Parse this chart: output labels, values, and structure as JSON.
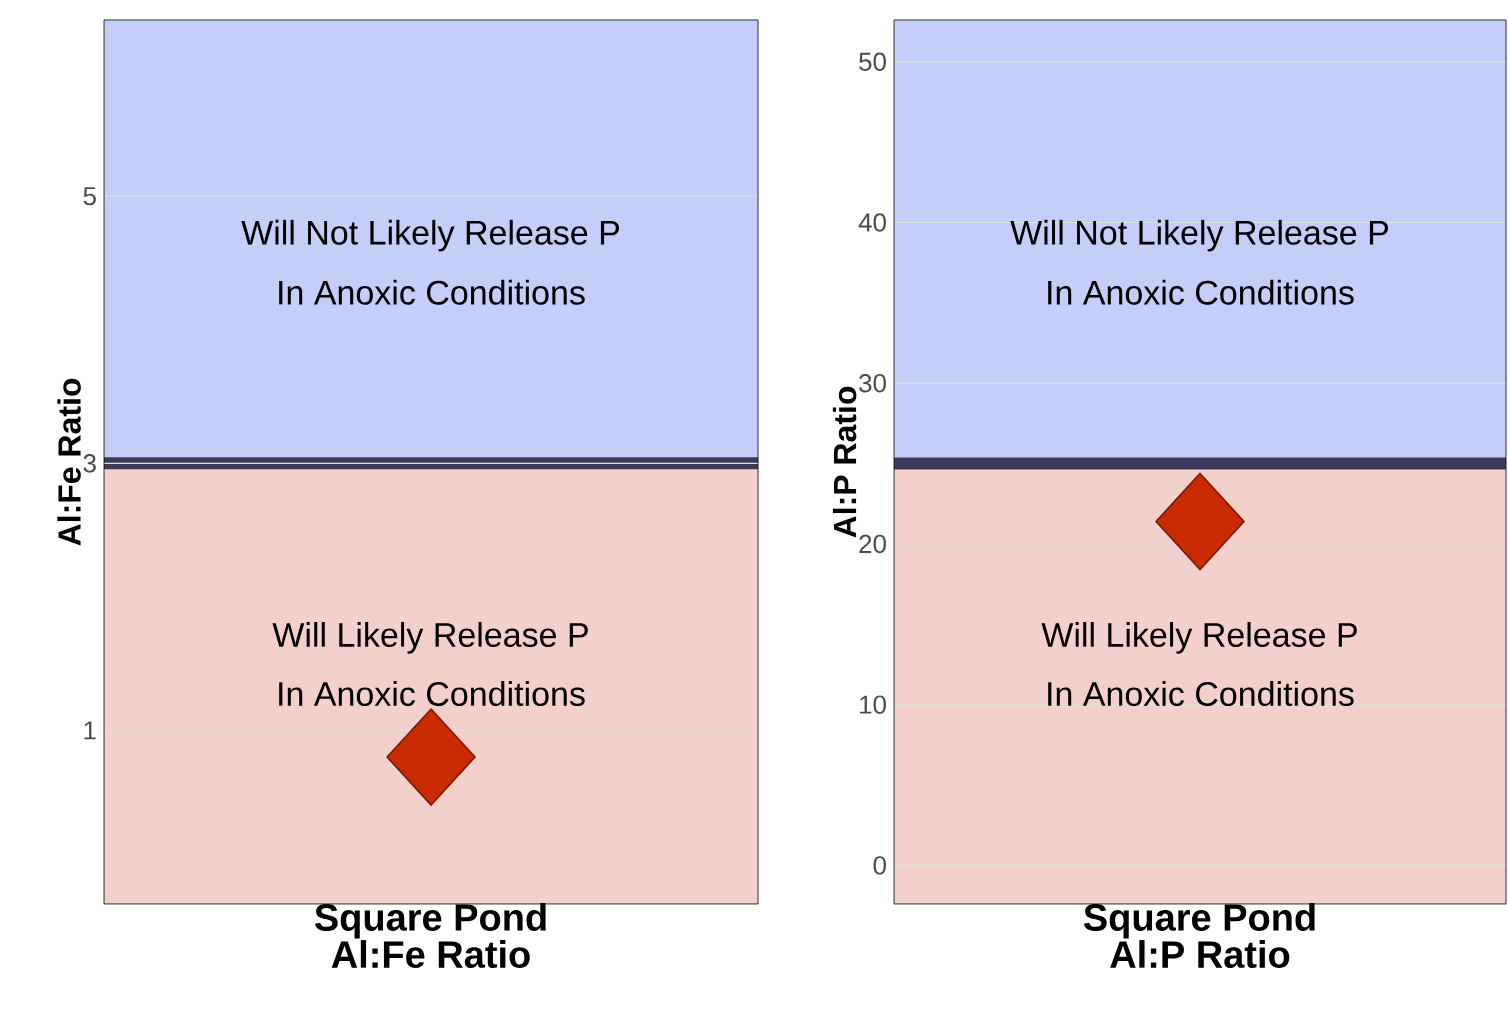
{
  "chart_data": [
    {
      "type": "scatter",
      "xlabel": "Al:Fe Ratio",
      "ylabel": "Al:Fe Ratio",
      "categories": [
        "Square Pond"
      ],
      "values": [
        0.8
      ],
      "color": "#c92a00",
      "marker": "diamond",
      "ylim": [
        -0.3,
        6.32
      ],
      "yticks": [
        1,
        3,
        5
      ],
      "grid": "y",
      "bands": [
        {
          "axis": "y",
          "from": -0.3,
          "to": 3,
          "color": "#f4d0cc"
        },
        {
          "axis": "y",
          "from": 3,
          "to": 6.32,
          "color": "#c5cdf9"
        }
      ],
      "ref_lines": [
        {
          "axis": "y",
          "value": 3,
          "color": "#3d3a5c"
        }
      ],
      "annotations": [
        "Will Not Likely Release P",
        "In Anoxic Conditions",
        "Will Likely Release P",
        "In Anoxic Conditions"
      ]
    },
    {
      "type": "scatter",
      "xlabel": "Al:P Ratio",
      "ylabel": "Al:P Ratio",
      "categories": [
        "Square Pond"
      ],
      "values": [
        21.4
      ],
      "color": "#c92a00",
      "marker": "diamond",
      "ylim": [
        -2.4,
        52.6
      ],
      "yticks": [
        0,
        10,
        20,
        30,
        40,
        50
      ],
      "grid": "y",
      "bands": [
        {
          "axis": "y",
          "from": -2.4,
          "to": 25,
          "color": "#f4d0cc"
        },
        {
          "axis": "y",
          "from": 25,
          "to": 52.6,
          "color": "#c5cdf9"
        }
      ],
      "ref_lines": [
        {
          "axis": "y",
          "value": 25,
          "color": "#3d3a5c"
        }
      ],
      "annotations": [
        "Will Not Likely Release P",
        "In Anoxic Conditions",
        "Will Likely Release P",
        "In Anoxic Conditions"
      ]
    }
  ]
}
